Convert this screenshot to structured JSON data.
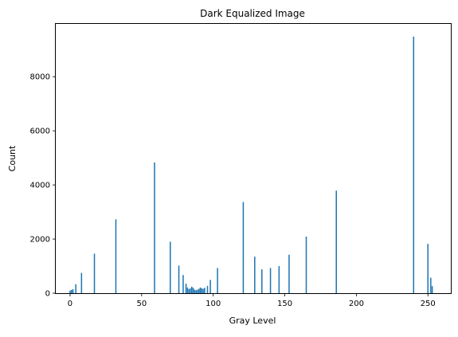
{
  "chart_data": {
    "type": "bar",
    "title": "Dark Equalized Image",
    "xlabel": "Gray Level",
    "ylabel": "Count",
    "xlim": [
      -10,
      266
    ],
    "ylim": [
      0,
      9950
    ],
    "xticks": [
      0,
      50,
      100,
      150,
      200,
      250
    ],
    "yticks": [
      0,
      2000,
      4000,
      6000,
      8000
    ],
    "grid": false,
    "bar_color": "#1f77b4",
    "x": [
      0,
      1,
      2,
      4,
      8,
      17,
      32,
      59,
      70,
      76,
      79,
      81,
      82,
      83,
      84,
      85,
      86,
      87,
      88,
      89,
      90,
      91,
      92,
      93,
      94,
      96,
      98,
      103,
      121,
      129,
      134,
      140,
      146,
      153,
      165,
      186,
      240,
      250,
      252,
      253
    ],
    "values": [
      100,
      120,
      150,
      330,
      750,
      1460,
      2730,
      4830,
      1900,
      1020,
      670,
      350,
      210,
      150,
      180,
      240,
      200,
      130,
      110,
      130,
      160,
      210,
      180,
      160,
      200,
      270,
      490,
      930,
      3370,
      1350,
      880,
      930,
      1000,
      1420,
      2090,
      3790,
      9480,
      1820,
      570,
      260
    ]
  }
}
